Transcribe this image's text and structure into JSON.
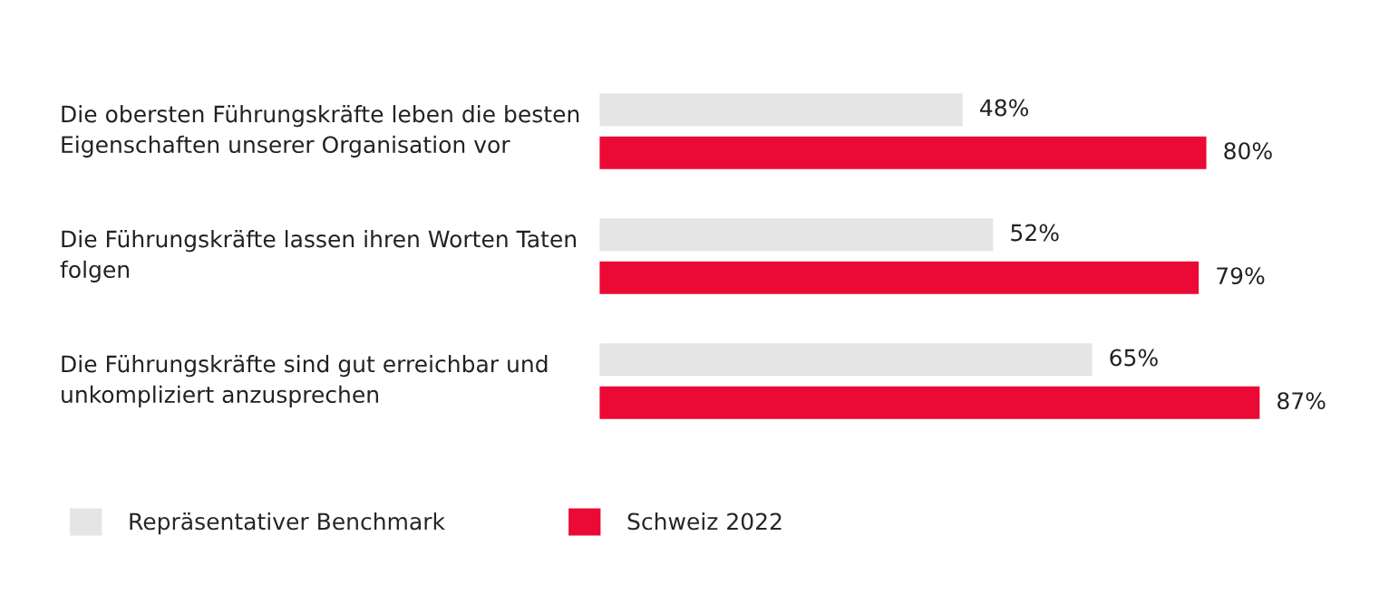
{
  "chart_data": {
    "type": "bar",
    "orientation": "horizontal",
    "categories": [
      "Die obersten Führungskräfte leben die besten\nEigenschaften unserer Organisation vor",
      "Die Führungskräfte lassen ihren Worten Taten\nfolgen",
      "Die Führungskräfte sind gut erreichbar und\nunkompliziert anzusprechen"
    ],
    "series": [
      {
        "name": "Repräsentativer Benchmark",
        "color": "#e5e5e5",
        "values": [
          48,
          52,
          65
        ],
        "value_labels": [
          "48%",
          "52%",
          "65%"
        ]
      },
      {
        "name": "Schweiz 2022",
        "color": "#eb0a35",
        "values": [
          80,
          79,
          87
        ],
        "value_labels": [
          "80%",
          "79%",
          "87%"
        ]
      }
    ],
    "legend": "bottom"
  }
}
